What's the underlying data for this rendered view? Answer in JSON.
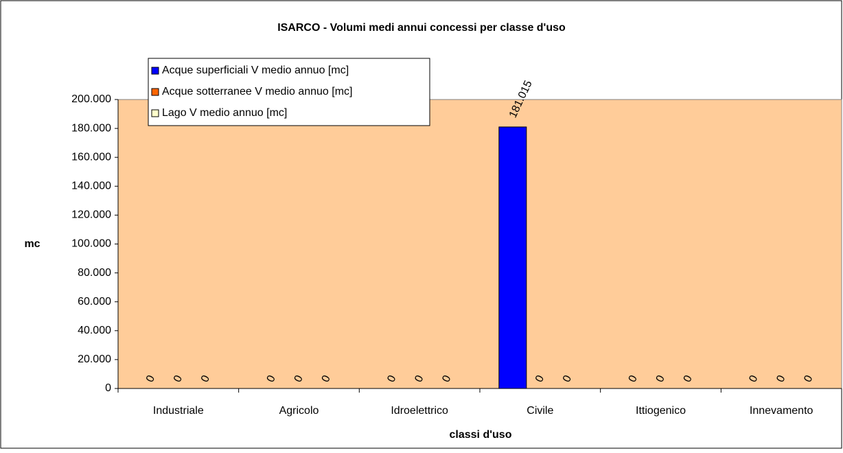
{
  "chart_data": {
    "type": "bar",
    "title": "ISARCO - Volumi medi annui concessi per classe d'uso",
    "xlabel": "classi d'uso",
    "ylabel": "mc",
    "categories": [
      "Industriale",
      "Agricolo",
      "Idroelettrico",
      "Civile",
      "Ittiogenico",
      "Innevamento"
    ],
    "series": [
      {
        "name": "Acque superficiali V medio annuo [mc]",
        "color": "#0000ff",
        "values": [
          0,
          0,
          0,
          181015,
          0,
          0
        ],
        "value_labels": [
          "0",
          "0",
          "0",
          "181.015",
          "0",
          "0"
        ]
      },
      {
        "name": "Acque sotterranee V medio annuo [mc]",
        "color": "#ff6600",
        "values": [
          0,
          0,
          0,
          0,
          0,
          0
        ]
      },
      {
        "name": "Lago V medio annuo [mc]",
        "color": "#ffffcc",
        "values": [
          0,
          0,
          0,
          0,
          0,
          0
        ]
      }
    ],
    "ylim": [
      0,
      200000
    ],
    "yticks": [
      0,
      {
        "value": 20000,
        "label": "20.000"
      },
      {
        "value": 40000,
        "label": "40.000"
      },
      {
        "value": 60000,
        "label": "60.000"
      },
      {
        "value": 80000,
        "label": "80.000"
      },
      {
        "value": 100000,
        "label": "100.000"
      },
      {
        "value": 120000,
        "label": "120.000"
      },
      {
        "value": 140000,
        "label": "140.000"
      },
      {
        "value": 160000,
        "label": "160.000"
      },
      {
        "value": 180000,
        "label": "180.000"
      },
      {
        "value": 200000,
        "label": "200.000"
      }
    ],
    "legend": "upper left",
    "plot_background": "#ffcc99",
    "grid": false
  }
}
